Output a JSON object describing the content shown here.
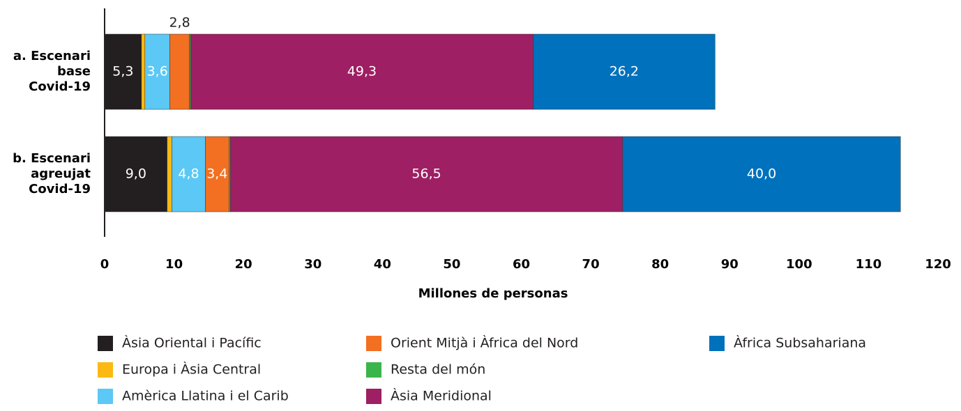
{
  "chart_data": {
    "type": "stacked-bar-horizontal",
    "categories": [
      [
        "a. Escenari",
        "base",
        "Covid-19"
      ],
      [
        "b. Escenari",
        "agreujat",
        "Covid-19"
      ]
    ],
    "series": [
      {
        "name": "Àsia Oriental i Pacífic",
        "color": "#231f20",
        "values": [
          5.3,
          9.0
        ],
        "value_labels": [
          "5,3",
          "9,0"
        ]
      },
      {
        "name": "Europa i Àsia Central",
        "color": "#fdb913",
        "values": [
          0.5,
          0.7
        ]
      },
      {
        "name": "Amèrica Llatina i el Carib",
        "color": "#5bc8f5",
        "values": [
          3.6,
          4.8
        ],
        "value_labels": [
          "3,6",
          "4,8"
        ]
      },
      {
        "name": "Orient Mitjà i Àfrica del Nord",
        "color": "#f36f21",
        "values": [
          2.8,
          3.4
        ],
        "value_labels": [
          "2,8",
          "3,4"
        ]
      },
      {
        "name": "Resta del món",
        "color": "#3ab54a",
        "values": [
          0.2,
          0.2
        ]
      },
      {
        "name": "Àsia Meridional",
        "color": "#9e1f63",
        "values": [
          49.3,
          56.5
        ],
        "value_labels": [
          "49,3",
          "56,5"
        ]
      },
      {
        "name": "Àfrica Subsahariana",
        "color": "#0071bc",
        "values": [
          26.2,
          40.0
        ],
        "value_labels": [
          "26,2",
          "40,0"
        ]
      }
    ],
    "xlabel": "Millones de personas",
    "xlim": [
      0,
      120
    ],
    "xticks": [
      0,
      10,
      20,
      30,
      40,
      50,
      60,
      70,
      80,
      90,
      100,
      110,
      120
    ],
    "grid": false,
    "legend": "bottom"
  }
}
